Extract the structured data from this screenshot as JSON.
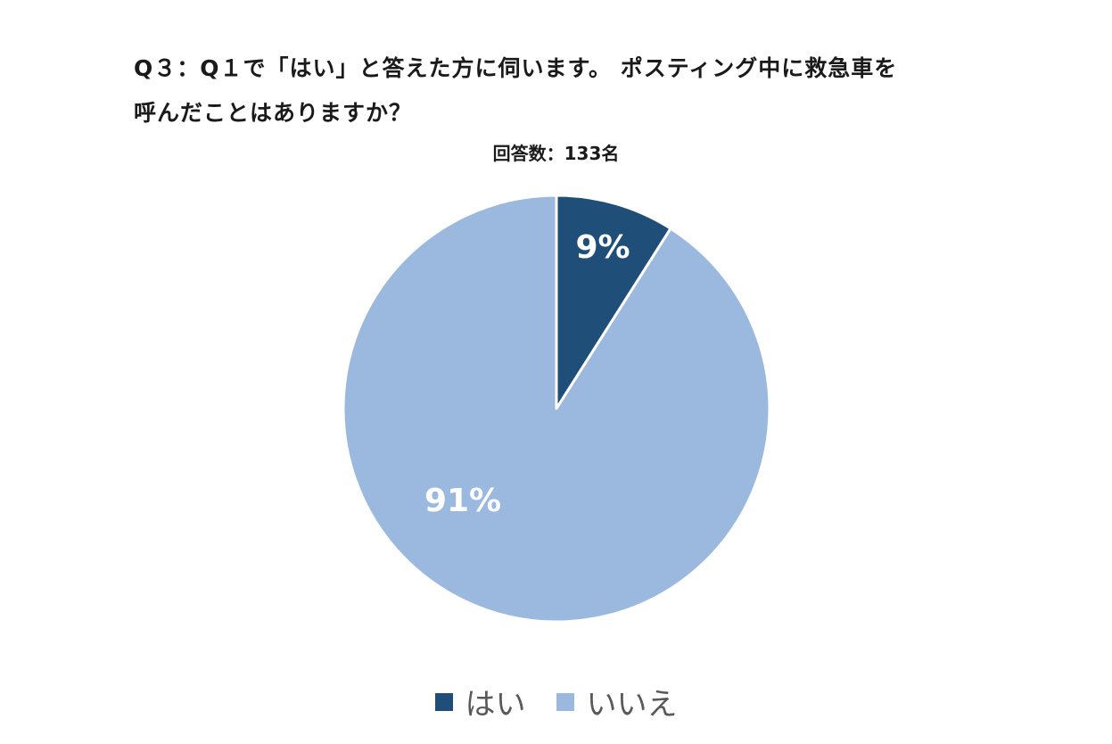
{
  "chart_data": {
    "type": "pie",
    "title_line1": "Q３：Q１で「はい」と答えた方に伺います。 ポスティング中に救急車を",
    "title_line2": "呼んだことはありますか？",
    "subtitle": "回答数：133名",
    "categories": [
      "はい",
      "いいえ"
    ],
    "values": [
      9,
      91
    ],
    "labels": [
      "9%",
      "91%"
    ],
    "colors": [
      "#1f4e79",
      "#9bb9de"
    ],
    "start_angle": "12 o'clock",
    "direction": "clockwise",
    "legend_position": "bottom"
  }
}
